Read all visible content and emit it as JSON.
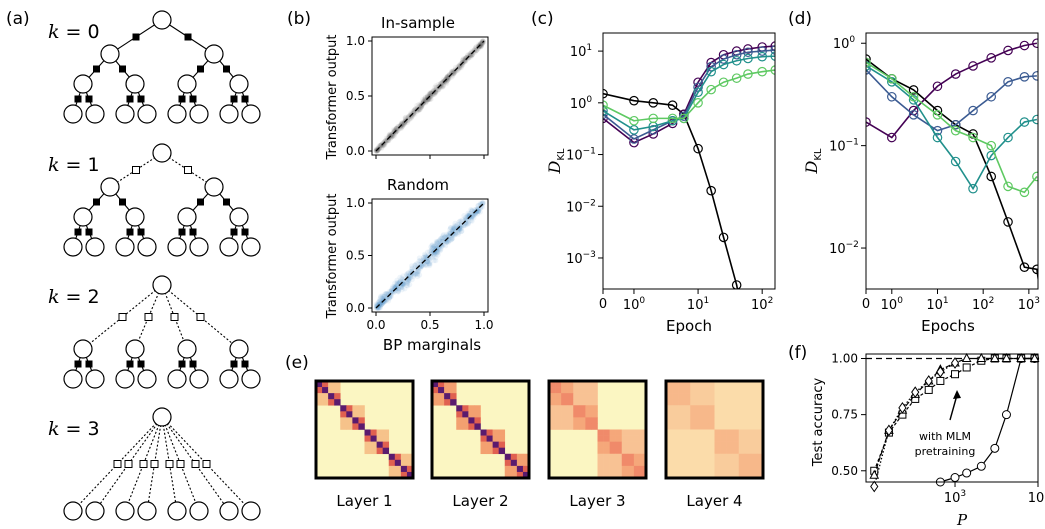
{
  "panels": {
    "a": {
      "label": "(a)",
      "trees": [
        {
          "label": "k = 0",
          "k_tex": "k",
          "k_val": "= 0"
        },
        {
          "label": "k = 1",
          "k_tex": "k",
          "k_val": "= 1"
        },
        {
          "label": "k = 2",
          "k_tex": "k",
          "k_val": "= 2"
        },
        {
          "label": "k = 3",
          "k_tex": "k",
          "k_val": "= 3"
        }
      ]
    },
    "b": {
      "label": "(b)",
      "top_title": "In-sample",
      "bottom_title": "Random",
      "ylabel": "Transformer output",
      "xlabel": "BP marginals"
    },
    "c": {
      "label": "(c)",
      "xlabel": "Epoch",
      "ylabel": "D_KL"
    },
    "d": {
      "label": "(d)",
      "xlabel": "Epochs",
      "ylabel": "D_KL"
    },
    "e": {
      "label": "(e)",
      "layers": [
        "Layer 1",
        "Layer 2",
        "Layer 3",
        "Layer 4"
      ]
    },
    "f": {
      "label": "(f)",
      "ylabel": "Test accuracy",
      "xlabel": "P",
      "annotation_line1": "with MLM",
      "annotation_line2": "pretraining"
    }
  },
  "colors": {
    "black": "#000000",
    "purple": "#440154",
    "violet": "#5b3a8e",
    "blue": "#3b5b92",
    "teal": "#21908c",
    "green": "#5ec962",
    "scatter_gray": "#555555",
    "scatter_blue": "#4a90c8"
  },
  "chart_data": [
    {
      "panel": "b-top",
      "type": "scatter",
      "title": "In-sample",
      "xlim": [
        0,
        1
      ],
      "ylim": [
        0,
        1
      ],
      "xticks": [
        "0.0",
        "0.5",
        "1.0"
      ],
      "yticks": [
        "0.0",
        "0.5",
        "1.0"
      ],
      "ylabel": "Transformer output",
      "description_series": [
        {
          "x": [
            0,
            1
          ],
          "y": [
            0,
            1
          ],
          "style": "dashed"
        }
      ]
    },
    {
      "panel": "b-bottom",
      "type": "scatter",
      "title": "Random",
      "xlim": [
        0,
        1
      ],
      "ylim": [
        0,
        1
      ],
      "xticks": [
        "0.0",
        "0.5",
        "1.0"
      ],
      "yticks": [
        "0.0",
        "0.5",
        "1.0"
      ],
      "xlabel": "BP marginals",
      "ylabel": "Transformer output"
    },
    {
      "panel": "c",
      "type": "line",
      "xlabel": "Epoch",
      "ylabel": "D_KL",
      "xscale": "symlog",
      "yscale": "log",
      "xticks": [
        "0",
        "10^0",
        "10^1",
        "10^2"
      ],
      "yticks": [
        "10^-3",
        "10^-2",
        "10^-1",
        "10^0",
        "10^1"
      ],
      "x": [
        0,
        1,
        2,
        4,
        6,
        10,
        16,
        25,
        40,
        60,
        100,
        160
      ],
      "series": [
        {
          "color": "#000000",
          "values": [
            1.5,
            1.1,
            1.0,
            0.9,
            0.6,
            0.13,
            0.02,
            0.0025,
            0.0003,
            null,
            null,
            null
          ]
        },
        {
          "color": "#440154",
          "values": [
            0.5,
            0.17,
            0.25,
            0.4,
            0.6,
            2.5,
            6,
            8.5,
            10,
            11,
            12,
            12.5
          ]
        },
        {
          "color": "#3b5b92",
          "values": [
            0.6,
            0.2,
            0.3,
            0.45,
            0.55,
            2.0,
            5,
            7,
            8.5,
            9.5,
            10,
            10.5
          ]
        },
        {
          "color": "#21908c",
          "values": [
            0.7,
            0.3,
            0.35,
            0.45,
            0.5,
            1.6,
            4,
            5.5,
            6.5,
            7.2,
            7.8,
            8
          ]
        },
        {
          "color": "#5ec962",
          "values": [
            0.9,
            0.45,
            0.5,
            0.5,
            0.5,
            1.0,
            1.8,
            2.5,
            3.0,
            3.6,
            4.0,
            4.3
          ]
        }
      ]
    },
    {
      "panel": "d",
      "type": "line",
      "xlabel": "Epochs",
      "ylabel": "D_KL",
      "xscale": "symlog",
      "yscale": "log",
      "xticks": [
        "0",
        "10^0",
        "10^1",
        "10^2",
        "10^3"
      ],
      "yticks": [
        "10^-2",
        "10^-1",
        "10^0"
      ],
      "x": [
        0,
        1,
        3,
        10,
        25,
        60,
        150,
        350,
        800,
        1500
      ],
      "series": [
        {
          "color": "#000000",
          "values": [
            0.7,
            0.45,
            0.35,
            0.22,
            0.16,
            0.13,
            0.05,
            0.018,
            0.0065,
            0.0062
          ]
        },
        {
          "color": "#440154",
          "values": [
            0.17,
            0.12,
            0.22,
            0.38,
            0.5,
            0.6,
            0.72,
            0.85,
            0.95,
            1.0
          ]
        },
        {
          "color": "#3b5b92",
          "values": [
            0.55,
            0.3,
            0.2,
            0.14,
            0.16,
            0.22,
            0.3,
            0.42,
            0.47,
            0.48
          ]
        },
        {
          "color": "#21908c",
          "values": [
            0.6,
            0.42,
            0.28,
            0.12,
            0.07,
            0.038,
            0.08,
            0.12,
            0.17,
            0.18
          ]
        },
        {
          "color": "#5ec962",
          "values": [
            0.65,
            0.45,
            0.3,
            0.2,
            0.14,
            0.12,
            0.1,
            0.04,
            0.035,
            0.05
          ]
        }
      ]
    },
    {
      "panel": "e",
      "type": "heatmap",
      "titles": [
        "Layer 1",
        "Layer 2",
        "Layer 3",
        "Layer 4"
      ]
    },
    {
      "panel": "f",
      "type": "line",
      "xlabel": "P",
      "ylabel": "Test accuracy",
      "xscale": "log",
      "ylim": [
        0.45,
        1.02
      ],
      "xticks": [
        "10^3",
        "10"
      ],
      "yticks": [
        "0.50",
        "0.75",
        "1.00"
      ],
      "reference_line": 1.0,
      "series": [
        {
          "marker": "circle",
          "x": [
            600,
            1000,
            1500,
            2500,
            4000,
            6000,
            10000,
            16000
          ],
          "values": [
            0.45,
            0.47,
            0.49,
            0.52,
            0.6,
            0.75,
            1.0,
            1.0
          ]
        },
        {
          "marker": "square",
          "x": [
            60,
            100,
            160,
            250,
            400,
            600,
            1000,
            1500,
            2500,
            4000,
            6000,
            10000,
            16000
          ],
          "values": [
            0.5,
            0.67,
            0.75,
            0.82,
            0.86,
            0.9,
            0.93,
            0.96,
            0.99,
            1.0,
            1.0,
            1.0,
            1.0
          ]
        },
        {
          "marker": "triangle",
          "x": [
            60,
            100,
            160,
            250,
            400,
            600,
            1000,
            1500,
            2500,
            4000,
            6000,
            10000,
            16000
          ],
          "values": [
            0.48,
            0.68,
            0.77,
            0.84,
            0.9,
            0.95,
            0.98,
            1.0,
            1.0,
            1.0,
            1.0,
            1.0,
            1.0
          ]
        },
        {
          "marker": "diamond",
          "x": [
            60,
            100,
            160,
            250,
            400,
            600,
            1000
          ],
          "values": [
            0.43,
            0.68,
            0.78,
            0.85,
            0.9,
            0.94,
            0.98
          ]
        }
      ]
    }
  ]
}
